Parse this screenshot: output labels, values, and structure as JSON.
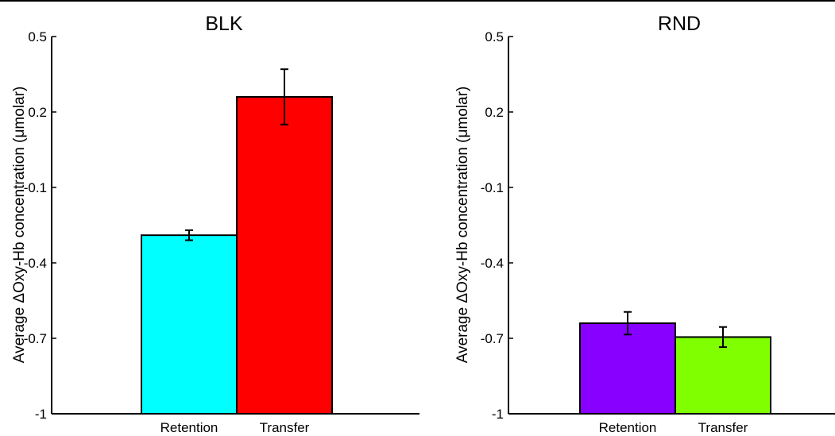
{
  "chart_data": [
    {
      "type": "bar",
      "title": "BLK",
      "ylabel": "Average ΔOxy-Hb concentration (μmolar)",
      "xlabel": "",
      "categories": [
        "Retention",
        "Transfer"
      ],
      "values": [
        -0.29,
        0.26
      ],
      "errors": [
        0.02,
        0.11
      ],
      "colors": [
        "#00FFFF",
        "#FF0000"
      ],
      "ylim": [
        -1,
        0.5
      ],
      "yticks": [
        "0.5",
        "0.2",
        "-0.1",
        "-0.4",
        "-0.7",
        "-1"
      ],
      "ytick_values": [
        0.5,
        0.2,
        -0.1,
        -0.4,
        -0.7,
        -1
      ]
    },
    {
      "type": "bar",
      "title": "RND",
      "ylabel": "Average ΔOxy-Hb concentration (μmolar)",
      "xlabel": "",
      "categories": [
        "Retention",
        "Transfer"
      ],
      "values": [
        -0.64,
        -0.695
      ],
      "errors": [
        0.045,
        0.04
      ],
      "colors": [
        "#8800FF",
        "#80FF00"
      ],
      "ylim": [
        -1,
        0.5
      ],
      "yticks": [
        "0.5",
        "0.2",
        "-0.1",
        "-0.4",
        "-0.7",
        "-1"
      ],
      "ytick_values": [
        0.5,
        0.2,
        -0.1,
        -0.4,
        -0.7,
        -1
      ]
    }
  ]
}
